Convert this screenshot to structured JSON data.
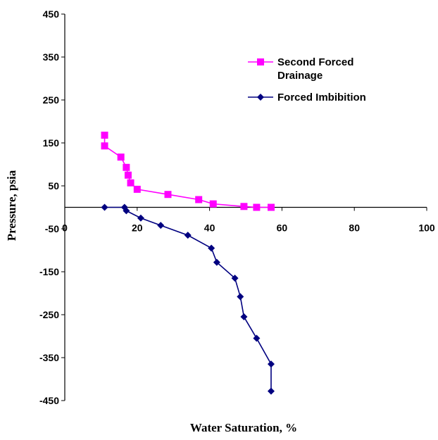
{
  "chart_data": {
    "type": "line",
    "title": "",
    "xlabel": "Water Saturation, %",
    "ylabel": "Pressure, psia",
    "xlim": [
      0,
      100
    ],
    "ylim": [
      -450,
      450
    ],
    "x_ticks": [
      0,
      20,
      40,
      60,
      80,
      100
    ],
    "y_ticks": [
      450,
      350,
      250,
      150,
      50,
      -50,
      -150,
      -250,
      -350,
      -450
    ],
    "grid": false,
    "legend_position": "top-right",
    "series": [
      {
        "name": "Second Forced Drainage",
        "color": "#ff00ff",
        "marker": "square",
        "x": [
          11,
          11,
          15.5,
          17,
          17.5,
          18.2,
          20,
          28.5,
          37,
          41,
          49.5,
          53,
          57
        ],
        "y": [
          168,
          143,
          117,
          93,
          75,
          57,
          42,
          30,
          18,
          8,
          2,
          0,
          0
        ]
      },
      {
        "name": "Forced Imbibition",
        "color": "#000080",
        "marker": "diamond",
        "x": [
          11,
          16.5,
          17,
          21,
          26.5,
          34,
          40.5,
          42,
          47,
          48.5,
          49.5,
          53,
          57,
          57
        ],
        "y": [
          0,
          0,
          -8,
          -25,
          -42,
          -65,
          -95,
          -128,
          -165,
          -208,
          -255,
          -305,
          -365,
          -428
        ]
      }
    ]
  }
}
